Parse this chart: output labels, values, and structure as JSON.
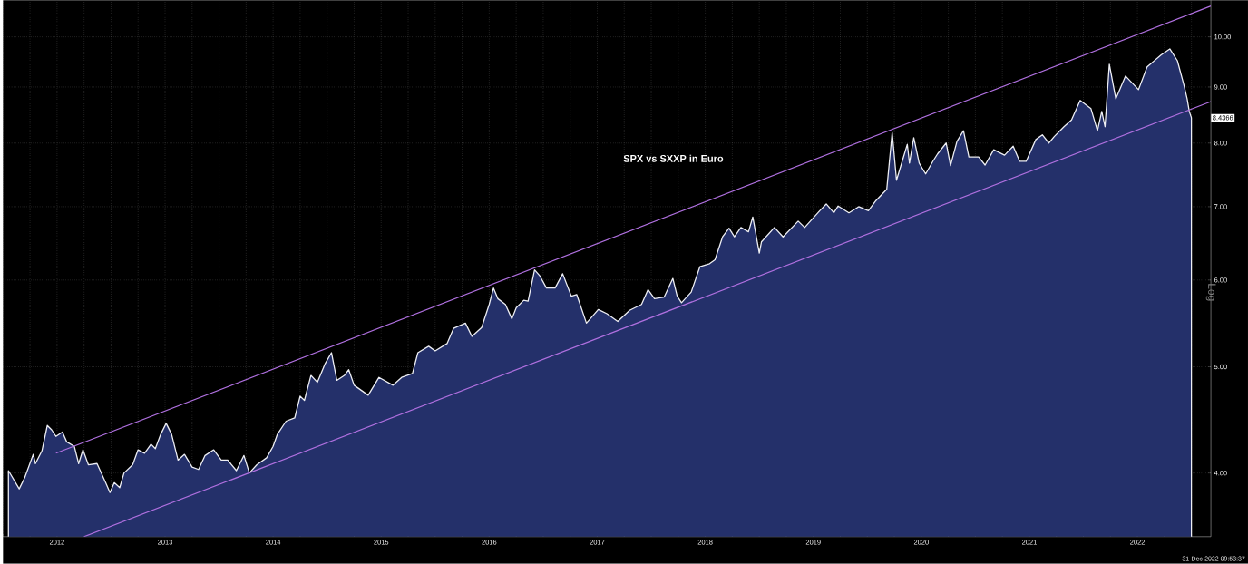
{
  "chart_data": {
    "type": "line",
    "title": "SPX vs SXXP in Euro",
    "ylabel": "Log",
    "log": "y",
    "grid": true,
    "xlim": [
      2012,
      2023.18
    ],
    "ylim": [
      3.5,
      10.8
    ],
    "yticks": [
      {
        "value": 4,
        "label": "4.00"
      },
      {
        "value": 5,
        "label": "5.00"
      },
      {
        "value": 6,
        "label": "6.00"
      },
      {
        "value": 7,
        "label": "7.00"
      },
      {
        "value": 8,
        "label": "8.00"
      },
      {
        "value": 9,
        "label": "9.00"
      },
      {
        "value": 10,
        "label": "10.00"
      }
    ],
    "xticks": [
      {
        "value": 2012.0,
        "label": null
      },
      {
        "value": 2012.25,
        "label": null
      },
      {
        "value": 2012.5,
        "label": "2012"
      },
      {
        "value": 2012.75,
        "label": null
      },
      {
        "value": 2013.0,
        "label": null
      },
      {
        "value": 2013.25,
        "label": null
      },
      {
        "value": 2013.5,
        "label": "2013"
      },
      {
        "value": 2013.75,
        "label": null
      },
      {
        "value": 2014.0,
        "label": null
      },
      {
        "value": 2014.25,
        "label": null
      },
      {
        "value": 2014.5,
        "label": "2014"
      },
      {
        "value": 2014.75,
        "label": null
      },
      {
        "value": 2015.0,
        "label": null
      },
      {
        "value": 2015.25,
        "label": null
      },
      {
        "value": 2015.5,
        "label": "2015"
      },
      {
        "value": 2015.75,
        "label": null
      },
      {
        "value": 2016.0,
        "label": null
      },
      {
        "value": 2016.25,
        "label": null
      },
      {
        "value": 2016.5,
        "label": "2016"
      },
      {
        "value": 2016.75,
        "label": null
      },
      {
        "value": 2017.0,
        "label": null
      },
      {
        "value": 2017.25,
        "label": null
      },
      {
        "value": 2017.5,
        "label": "2017"
      },
      {
        "value": 2017.75,
        "label": null
      },
      {
        "value": 2018.0,
        "label": null
      },
      {
        "value": 2018.25,
        "label": null
      },
      {
        "value": 2018.5,
        "label": "2018"
      },
      {
        "value": 2018.75,
        "label": null
      },
      {
        "value": 2019.0,
        "label": null
      },
      {
        "value": 2019.25,
        "label": null
      },
      {
        "value": 2019.5,
        "label": "2019"
      },
      {
        "value": 2019.75,
        "label": null
      },
      {
        "value": 2020.0,
        "label": null
      },
      {
        "value": 2020.25,
        "label": null
      },
      {
        "value": 2020.5,
        "label": "2020"
      },
      {
        "value": 2020.75,
        "label": null
      },
      {
        "value": 2021.0,
        "label": null
      },
      {
        "value": 2021.25,
        "label": null
      },
      {
        "value": 2021.5,
        "label": "2021"
      },
      {
        "value": 2021.75,
        "label": null
      },
      {
        "value": 2022.0,
        "label": null
      },
      {
        "value": 2022.25,
        "label": null
      },
      {
        "value": 2022.5,
        "label": "2022"
      },
      {
        "value": 2022.75,
        "label": null
      },
      {
        "value": 2023.0,
        "label": null
      }
    ],
    "series": [
      {
        "type": "area",
        "color": "#24306a",
        "x": [
          2012.05,
          2012.15,
          2012.2,
          2012.28,
          2012.3,
          2012.36,
          2012.41,
          2012.45,
          2012.49,
          2012.55,
          2012.59,
          2012.66,
          2012.7,
          2012.74,
          2012.79,
          2012.87,
          2012.95,
          2012.99,
          2013.03,
          2013.08,
          2013.12,
          2013.2,
          2013.25,
          2013.31,
          2013.37,
          2013.41,
          2013.46,
          2013.51,
          2013.56,
          2013.62,
          2013.68,
          2013.75,
          2013.81,
          2013.87,
          2013.95,
          2014.02,
          2014.08,
          2014.16,
          2014.23,
          2014.28,
          2014.35,
          2014.44,
          2014.5,
          2014.54,
          2014.62,
          2014.7,
          2014.75,
          2014.79,
          2014.85,
          2014.91,
          2014.98,
          2015.04,
          2015.09,
          2015.16,
          2015.2,
          2015.25,
          2015.38,
          2015.48,
          2015.61,
          2015.69,
          2015.79,
          2015.84,
          2015.94,
          2016.0,
          2016.11,
          2016.17,
          2016.28,
          2016.34,
          2016.43,
          2016.5,
          2016.54,
          2016.58,
          2016.65,
          2016.71,
          2016.75,
          2016.82,
          2016.86,
          2016.92,
          2016.97,
          2017.03,
          2017.11,
          2017.18,
          2017.26,
          2017.31,
          2017.4,
          2017.51,
          2017.59,
          2017.69,
          2017.8,
          2017.91,
          2017.97,
          2018.03,
          2018.12,
          2018.2,
          2018.24,
          2018.28,
          2018.37,
          2018.45,
          2018.54,
          2018.59,
          2018.66,
          2018.72,
          2018.77,
          2018.83,
          2018.9,
          2018.94,
          2019.0,
          2019.02,
          2019.14,
          2019.22,
          2019.36,
          2019.42,
          2019.56,
          2019.62,
          2019.69,
          2019.73,
          2019.83,
          2019.92,
          2020.01,
          2020.08,
          2020.18,
          2020.23,
          2020.27,
          2020.37,
          2020.39,
          2020.43,
          2020.48,
          2020.54,
          2020.61,
          2020.65,
          2020.73,
          2020.77,
          2020.83,
          2020.89,
          2020.94,
          2021.03,
          2021.09,
          2021.17,
          2021.27,
          2021.35,
          2021.41,
          2021.47,
          2021.56,
          2021.62,
          2021.68,
          2021.73,
          2021.82,
          2021.89,
          2021.97,
          2022.07,
          2022.13,
          2022.17,
          2022.2,
          2022.24,
          2022.3,
          2022.39,
          2022.51,
          2022.59,
          2022.72,
          2022.8,
          2022.87,
          2022.93,
          2022.96,
          2022.98,
          2023.0
        ],
        "values": [
          4.02,
          3.87,
          3.96,
          4.16,
          4.08,
          4.19,
          4.42,
          4.38,
          4.32,
          4.36,
          4.27,
          4.23,
          4.08,
          4.2,
          4.07,
          4.08,
          3.92,
          3.84,
          3.92,
          3.88,
          4.0,
          4.07,
          4.2,
          4.17,
          4.25,
          4.21,
          4.34,
          4.44,
          4.34,
          4.11,
          4.16,
          4.05,
          4.03,
          4.15,
          4.2,
          4.11,
          4.11,
          4.02,
          4.15,
          4.0,
          4.07,
          4.13,
          4.23,
          4.34,
          4.46,
          4.49,
          4.7,
          4.66,
          4.91,
          4.84,
          5.03,
          5.15,
          4.86,
          4.91,
          4.97,
          4.81,
          4.71,
          4.89,
          4.81,
          4.89,
          4.93,
          5.15,
          5.22,
          5.17,
          5.25,
          5.42,
          5.48,
          5.33,
          5.43,
          5.7,
          5.9,
          5.77,
          5.7,
          5.53,
          5.66,
          5.75,
          5.74,
          6.13,
          6.05,
          5.9,
          5.9,
          6.08,
          5.8,
          5.82,
          5.48,
          5.64,
          5.59,
          5.5,
          5.63,
          5.7,
          5.88,
          5.77,
          5.79,
          6.02,
          5.8,
          5.72,
          5.85,
          6.17,
          6.21,
          6.26,
          6.57,
          6.69,
          6.57,
          6.7,
          6.64,
          6.85,
          6.35,
          6.5,
          6.7,
          6.57,
          6.79,
          6.7,
          6.94,
          7.04,
          6.91,
          7.01,
          6.91,
          7.0,
          6.94,
          7.09,
          7.26,
          8.18,
          7.4,
          7.98,
          7.67,
          8.09,
          7.67,
          7.5,
          7.71,
          7.82,
          8.0,
          7.63,
          8.03,
          8.21,
          7.77,
          7.77,
          7.64,
          7.89,
          7.8,
          7.95,
          7.7,
          7.7,
          8.06,
          8.14,
          8.0,
          8.11,
          8.28,
          8.4,
          8.75,
          8.6,
          8.21,
          8.55,
          8.28,
          9.44,
          8.78,
          9.21,
          8.95,
          9.39,
          9.63,
          9.75,
          9.51,
          9.04,
          8.78,
          8.55,
          8.4366
        ]
      },
      {
        "color": "#b070e0",
        "x": [
          2012.49,
          2023.18
        ],
        "values": [
          4.17,
          10.67
        ]
      },
      {
        "color": "#b070e0",
        "x": [
          2012.75,
          2023.18
        ],
        "values": [
          3.5,
          8.73
        ]
      }
    ],
    "annotations": [
      "8.4366",
      "31-Dec-2022 09:53:37"
    ]
  }
}
